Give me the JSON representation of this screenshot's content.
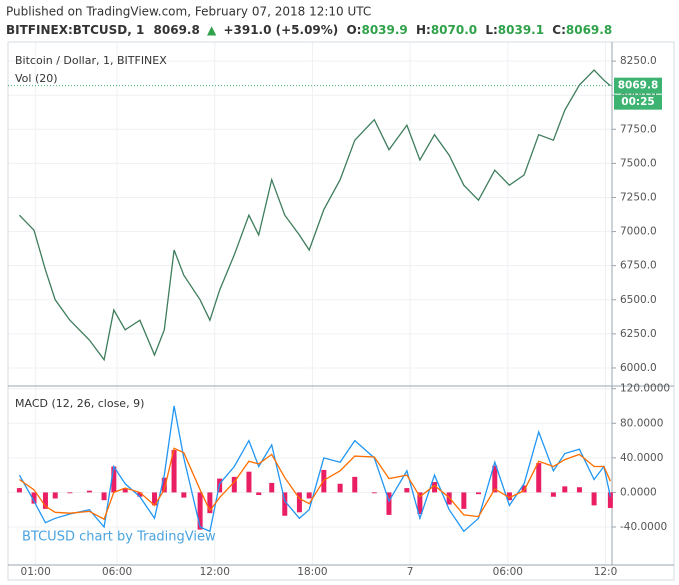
{
  "header": {
    "published": "Published on TradingView.com, February 07, 2018 12:10 UTC",
    "symbol": "BITFINEX:BTCUSD, 1",
    "last": "8069.8",
    "arrow": "▲",
    "change": "+391.0 (+5.09%)",
    "open_label": "O:",
    "open": "8039.9",
    "high_label": "H:",
    "high": "8070.0",
    "low_label": "L:",
    "low": "8039.1",
    "close_label": "C:",
    "close": "8069.8"
  },
  "watermark": "BTCUSD chart by TradingView",
  "chart_data": [
    {
      "type": "line",
      "title": "Bitcoin / Dollar, 1, BITFINEX",
      "volume_label": "Vol (20)",
      "color": "#3e7d5c",
      "last_price": 8069.8,
      "countdown": "00:25",
      "last_color": "#3cb371",
      "x": [
        0.0,
        0.9,
        1.6,
        2.2,
        3.1,
        4.3,
        5.2,
        5.8,
        6.5,
        7.4,
        8.3,
        8.9,
        9.5,
        10.1,
        11.1,
        11.7,
        12.3,
        13.2,
        14.1,
        14.7,
        15.5,
        16.3,
        17.2,
        17.8,
        18.7,
        19.7,
        20.6,
        21.8,
        22.7,
        23.8,
        24.6,
        25.5,
        26.4,
        27.3,
        28.2,
        29.2,
        30.1,
        31.0,
        31.9,
        32.8,
        33.5,
        34.4,
        35.3,
        35.9,
        36.3
      ],
      "values": [
        7120,
        7010,
        6720,
        6500,
        6350,
        6205,
        6060,
        6425,
        6280,
        6350,
        6095,
        6280,
        6865,
        6680,
        6500,
        6350,
        6570,
        6830,
        7120,
        6975,
        7380,
        7120,
        6975,
        6865,
        7160,
        7380,
        7670,
        7820,
        7600,
        7780,
        7525,
        7710,
        7560,
        7340,
        7230,
        7450,
        7340,
        7415,
        7710,
        7670,
        7890,
        8075,
        8185,
        8110,
        8069.8
      ],
      "xlim": [
        -0.7,
        36.4
      ],
      "xticks": [
        {
          "value": 1,
          "label": "01:00"
        },
        {
          "value": 6,
          "label": "06:00"
        },
        {
          "value": 12,
          "label": "12:00"
        },
        {
          "value": 18,
          "label": "18:00"
        },
        {
          "value": 24,
          "label": "7"
        },
        {
          "value": 30,
          "label": "06:00"
        },
        {
          "value": 36,
          "label": "12:0"
        }
      ],
      "ylim": [
        5875,
        8390
      ],
      "yticks": [
        {
          "value": 6000,
          "label": "6000.0"
        },
        {
          "value": 6250,
          "label": "6250.0"
        },
        {
          "value": 6500,
          "label": "6500.0"
        },
        {
          "value": 6750,
          "label": "6750.0"
        },
        {
          "value": 7000,
          "label": "7000.0"
        },
        {
          "value": 7250,
          "label": "7250.0"
        },
        {
          "value": 7500,
          "label": "7500.0"
        },
        {
          "value": 7750,
          "label": "7750.0"
        },
        {
          "value": 8000,
          "label": "8000.0"
        },
        {
          "value": 8250,
          "label": "8250.0"
        }
      ],
      "grid": true
    },
    {
      "type": "line",
      "title": "MACD (12, 26, close, 9)",
      "series": [
        {
          "color": "#e91e63",
          "kind": "histogram",
          "values": [
            5,
            -13,
            -19,
            -7,
            -1,
            2,
            -9,
            30,
            5,
            -5,
            -15,
            17,
            49,
            -6,
            -43,
            -24,
            16,
            18,
            24,
            -3,
            11,
            -27,
            -23,
            -7,
            26,
            10,
            18,
            -1,
            -26,
            5,
            -25,
            12,
            -14,
            -19,
            -2,
            31,
            -9,
            8,
            34,
            -5,
            7,
            6,
            -15,
            0,
            -18
          ]
        },
        {
          "color": "#2196f3",
          "kind": "line",
          "values": [
            20,
            -10,
            -35,
            -30,
            -25,
            -20,
            -40,
            30,
            10,
            -5,
            -30,
            20,
            100,
            40,
            -40,
            -45,
            10,
            30,
            60,
            30,
            55,
            -10,
            -30,
            -20,
            40,
            35,
            60,
            40,
            -10,
            25,
            -30,
            20,
            -20,
            -45,
            -30,
            35,
            -15,
            10,
            70,
            25,
            45,
            50,
            15,
            30,
            -5
          ]
        },
        {
          "color": "#ff6d00",
          "kind": "line",
          "values": [
            15,
            3,
            -16,
            -23,
            -24,
            -22,
            -31,
            0,
            5,
            0,
            -15,
            3,
            51,
            46,
            3,
            -21,
            -6,
            12,
            36,
            33,
            44,
            17,
            -7,
            -13,
            14,
            25,
            42,
            41,
            16,
            20,
            -5,
            8,
            -6,
            -26,
            -28,
            4,
            -6,
            2,
            36,
            30,
            38,
            44,
            30,
            30,
            13
          ]
        }
      ],
      "ylim": [
        -84,
        122
      ],
      "yticks": [
        {
          "value": -40,
          "label": "-40.0000"
        },
        {
          "value": 0,
          "label": "0.0000"
        },
        {
          "value": 40,
          "label": "40.0000"
        },
        {
          "value": 80,
          "label": "80.0000"
        },
        {
          "value": 120,
          "label": "120.0000"
        }
      ],
      "grid": true
    }
  ]
}
